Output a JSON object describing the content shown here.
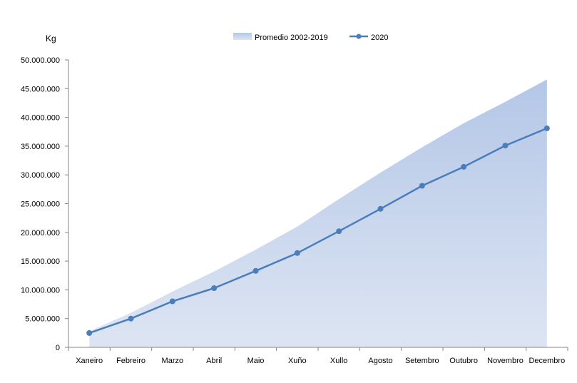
{
  "chart_data": {
    "type": "area",
    "unit_label": "Kg",
    "categories": [
      "Xaneiro",
      "Febreiro",
      "Marzo",
      "Abril",
      "Maio",
      "Xuño",
      "Xullo",
      "Agosto",
      "Setembro",
      "Outubro",
      "Novembro",
      "Decembro"
    ],
    "series": [
      {
        "name": "Promedio 2002-2019",
        "type": "area",
        "color": "#b4c7e7",
        "values": [
          2800000,
          6000000,
          9700000,
          13200000,
          17000000,
          21000000,
          25800000,
          30400000,
          34800000,
          39000000,
          42700000,
          46600000
        ]
      },
      {
        "name": "2020",
        "type": "line",
        "color": "#4a7ebb",
        "values": [
          2500000,
          5000000,
          8000000,
          10300000,
          13300000,
          16400000,
          20200000,
          24100000,
          28100000,
          31400000,
          35100000,
          38100000
        ]
      }
    ],
    "ylim": [
      0,
      50000000
    ],
    "yticks": [
      "0",
      "5.000.000",
      "10.000.000",
      "15.000.000",
      "20.000.000",
      "25.000.000",
      "30.000.000",
      "35.000.000",
      "40.000.000",
      "45.000.000",
      "50.000.000"
    ],
    "grid": false,
    "legend_position": "top-center"
  }
}
